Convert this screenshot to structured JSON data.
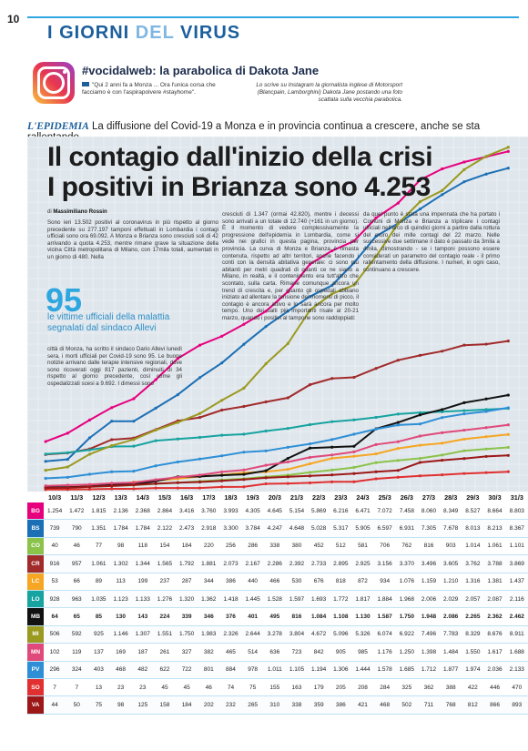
{
  "page_number": "10",
  "section": {
    "word1": "I GIORNI",
    "word2": "DEL",
    "word3": "VIRUS"
  },
  "insta": {
    "headline": "#vocidalweb: la parabolica di Dakota Jane",
    "quote": "\"Qui 2 anni fa a Monza ... Ora l'unica corsa che facciamo è con l'aspirapolvere #stayhome\".",
    "caption": "Lo scrive su Instagram la giornalista inglese di Motorsport (Blancpain, Lamborghini) Dakota Jane postando una foto scattata sulla vecchia parabolica."
  },
  "kicker": {
    "tag": "L'EPIDEMIA",
    "text": "La diffusione del Covid-19 a Monza e in provincia continua a crescere, anche se sta rallentando."
  },
  "headline": {
    "line1": "Il contagio dall'inizio della crisi",
    "line2": "I positivi in Brianza sono 4.253"
  },
  "byline": {
    "prefix": "di",
    "author": "Massimiliano Rossin"
  },
  "article": {
    "col1_top": "Sono ieri 13.502 positivi al coronavirus in più rispetto al giorno precedente su 277.197 tamponi effettuati in Lombardia i contagi ufficiali sono ora 69.092. A Monza e Brianza sono cresciuti soli di 42 arrivando a quota 4.253, mentre rimane grave la situazione della vicina Città metropolitana di Milano, con 17mila totali, aumentati in un giorno di 480. Nella",
    "col1_bottom": "città di Monza, ha scritto il sindaco Dario Allevi lunedì sera, i morti ufficiali per Covid-19 sono 95. Le buone notizie arrivano dalle terapie intensive regionali, dove sono ricoverati oggi 817 pazienti, diminuiti di 34 rispetto al giorno precedente, così come gli ospedalizzati scesi a 9.692. I dimessi sono",
    "col2": "cresciuti di 1.347 (ormai 42.820), mentre i decessi sono arrivati a un totale di 12.740 (+161 in un giorno). È il momento di vedere complessivamente la progressione dell'epidemia in Lombardia, come si vede nei grafici in questa pagina, provincia per provincia. La curva di Monza e Brianza è rimasta contenuta, rispetto ad altri territori, anche facendo i conti con la densità abitativa generale: ci sono più abitanti per metri quadrati di quanti ce ne siano a Milano, in realtà, e il contenimento era tutt'altro che scontato, sulla carta. Rimane comunque ancora un trend di crescita e, per quanto gli ospedali abbiano iniziato ad allentare la tensione dei momenti di picco, il contagio è ancora attivo e lo sarà ancora per molto tempo. Uno dei salti più importanti risale al 20-21 marzo, quando i positivi al tampone sono raddoppiati:",
    "col3": "da quel punto è stata una impennata che ha portato i Comuni di Monza e Brianza a triplicare i contagi ufficiali nell'arco di quindici giorni a partire dalla rottura del muro dei mille contagi del 22 marzo. Nelle successive due settimane il dato è passato da 3mila a 4mila, dimostrando - se i tamponi possono essere considerati un parametro del contagio reale - il primo rallentamento della diffusione. I numeri, in ogni caso, continuano a crescere."
  },
  "stat": {
    "number": "95",
    "text_line1": "le vittime ufficiali della malattia",
    "text_line2": "segnalati dal sindaco Allevi"
  },
  "chart_data": {
    "type": "line",
    "x": [
      "10/3",
      "11/3",
      "12/3",
      "13/3",
      "14/3",
      "15/3",
      "16/3",
      "17/3",
      "18/3",
      "19/3",
      "20/3",
      "21/3",
      "22/3",
      "23/3",
      "24/3",
      "25/3",
      "26/3",
      "27/3",
      "28/3",
      "29/3",
      "30/3",
      "31/3"
    ],
    "series": [
      {
        "name": "BG",
        "color": "#e6007e",
        "values": [
          1254,
          1472,
          1815,
          2136,
          2368,
          2864,
          3416,
          3760,
          3993,
          4305,
          4645,
          5154,
          5869,
          6216,
          6471,
          7072,
          7458,
          8060,
          8349,
          8527,
          8664,
          8803
        ]
      },
      {
        "name": "BS",
        "color": "#1b6fb5",
        "values": [
          739,
          790,
          1351,
          1784,
          1784,
          2122,
          2473,
          2918,
          3300,
          3784,
          4247,
          4648,
          5028,
          5317,
          5905,
          6597,
          6931,
          7305,
          7678,
          8013,
          8213,
          8367
        ]
      },
      {
        "name": "CO",
        "color": "#8bc34a",
        "values": [
          40,
          46,
          77,
          98,
          118,
          154,
          184,
          220,
          256,
          286,
          338,
          380,
          452,
          512,
          581,
          706,
          762,
          816,
          903,
          1014,
          1061,
          1101
        ]
      },
      {
        "name": "CR",
        "color": "#a12b2b",
        "values": [
          916,
          957,
          1061,
          1302,
          1344,
          1565,
          1792,
          1881,
          2073,
          2167,
          2286,
          2392,
          2733,
          2895,
          2925,
          3156,
          3370,
          3496,
          3605,
          3762,
          3788,
          3869
        ]
      },
      {
        "name": "LC",
        "color": "#f6a623",
        "values": [
          53,
          66,
          89,
          113,
          199,
          237,
          287,
          344,
          386,
          440,
          466,
          530,
          676,
          818,
          872,
          934,
          1076,
          1159,
          1210,
          1316,
          1381,
          1437
        ]
      },
      {
        "name": "LO",
        "color": "#17a3a0",
        "values": [
          928,
          963,
          1035,
          1123,
          1133,
          1276,
          1320,
          1362,
          1418,
          1445,
          1528,
          1597,
          1693,
          1772,
          1817,
          1884,
          1968,
          2006,
          2029,
          2057,
          2087,
          2116
        ]
      },
      {
        "name": "MB",
        "color": "#111111",
        "values": [
          64,
          65,
          85,
          130,
          143,
          224,
          339,
          346,
          376,
          401,
          495,
          816,
          1084,
          1108,
          1130,
          1587,
          1750,
          1948,
          2086,
          2265,
          2362,
          2462
        ]
      },
      {
        "name": "MI",
        "color": "#9a9a20",
        "values": [
          506,
          592,
          925,
          1146,
          1307,
          1551,
          1750,
          1983,
          2326,
          2644,
          3278,
          3804,
          4672,
          5096,
          5326,
          6074,
          6922,
          7496,
          7783,
          8329,
          8676,
          8911
        ]
      },
      {
        "name": "MN",
        "color": "#e04a7a",
        "values": [
          102,
          119,
          137,
          169,
          187,
          261,
          327,
          382,
          465,
          514,
          636,
          723,
          842,
          905,
          985,
          1176,
          1250,
          1398,
          1484,
          1550,
          1617,
          1688
        ]
      },
      {
        "name": "PV",
        "color": "#2e8fd6",
        "values": [
          296,
          324,
          403,
          468,
          482,
          622,
          722,
          801,
          884,
          978,
          1011,
          1105,
          1194,
          1306,
          1444,
          1578,
          1685,
          1712,
          1877,
          1974,
          2036,
          2133
        ]
      },
      {
        "name": "SO",
        "color": "#e03030",
        "values": [
          7,
          7,
          13,
          23,
          23,
          45,
          45,
          46,
          74,
          75,
          155,
          163,
          179,
          205,
          208,
          284,
          325,
          362,
          388,
          422,
          446,
          470
        ]
      },
      {
        "name": "VA",
        "color": "#9c1818",
        "values": [
          44,
          50,
          75,
          98,
          125,
          158,
          184,
          202,
          232,
          265,
          310,
          338,
          359,
          386,
          421,
          468,
          502,
          711,
          768,
          812,
          866,
          893
        ]
      }
    ],
    "ylim": [
      0,
      9000
    ],
    "grid": true
  },
  "table": {
    "rows": [
      {
        "code": "BG",
        "cells": [
          "1.254",
          "1.472",
          "1.815",
          "2.136",
          "2.368",
          "2.864",
          "3.416",
          "3.760",
          "3.993",
          "4.305",
          "4.645",
          "5.154",
          "5.869",
          "6.216",
          "6.471",
          "7.072",
          "7.458",
          "8.060",
          "8.349",
          "8.527",
          "8.664",
          "8.803"
        ]
      },
      {
        "code": "BS",
        "cells": [
          "739",
          "790",
          "1.351",
          "1.784",
          "1.784",
          "2.122",
          "2.473",
          "2.918",
          "3.300",
          "3.784",
          "4.247",
          "4.648",
          "5.028",
          "5.317",
          "5.905",
          "6.597",
          "6.931",
          "7.305",
          "7.678",
          "8.013",
          "8.213",
          "8.367"
        ]
      },
      {
        "code": "CO",
        "cells": [
          "40",
          "46",
          "77",
          "98",
          "118",
          "154",
          "184",
          "220",
          "256",
          "286",
          "338",
          "380",
          "452",
          "512",
          "581",
          "706",
          "762",
          "816",
          "903",
          "1.014",
          "1.061",
          "1.101"
        ]
      },
      {
        "code": "CR",
        "cells": [
          "916",
          "957",
          "1.061",
          "1.302",
          "1.344",
          "1.565",
          "1.792",
          "1.881",
          "2.073",
          "2.167",
          "2.286",
          "2.392",
          "2.733",
          "2.895",
          "2.925",
          "3.156",
          "3.370",
          "3.496",
          "3.605",
          "3.762",
          "3.788",
          "3.869"
        ]
      },
      {
        "code": "LC",
        "cells": [
          "53",
          "66",
          "89",
          "113",
          "199",
          "237",
          "287",
          "344",
          "386",
          "440",
          "466",
          "530",
          "676",
          "818",
          "872",
          "934",
          "1.076",
          "1.159",
          "1.210",
          "1.316",
          "1.381",
          "1.437"
        ]
      },
      {
        "code": "LO",
        "cells": [
          "928",
          "963",
          "1.035",
          "1.123",
          "1.133",
          "1.276",
          "1.320",
          "1.362",
          "1.418",
          "1.445",
          "1.528",
          "1.597",
          "1.693",
          "1.772",
          "1.817",
          "1.884",
          "1.968",
          "2.006",
          "2.029",
          "2.057",
          "2.087",
          "2.116"
        ]
      },
      {
        "code": "MB",
        "cells": [
          "64",
          "65",
          "85",
          "130",
          "143",
          "224",
          "339",
          "346",
          "376",
          "401",
          "495",
          "816",
          "1.084",
          "1.108",
          "1.130",
          "1.587",
          "1.750",
          "1.948",
          "2.086",
          "2.265",
          "2.362",
          "2.462"
        ],
        "bold": true
      },
      {
        "code": "MI",
        "cells": [
          "506",
          "592",
          "925",
          "1.146",
          "1.307",
          "1.551",
          "1.750",
          "1.983",
          "2.326",
          "2.644",
          "3.278",
          "3.804",
          "4.672",
          "5.096",
          "5.326",
          "6.074",
          "6.922",
          "7.496",
          "7.783",
          "8.329",
          "8.676",
          "8.911"
        ]
      },
      {
        "code": "MN",
        "cells": [
          "102",
          "119",
          "137",
          "169",
          "187",
          "261",
          "327",
          "382",
          "465",
          "514",
          "636",
          "723",
          "842",
          "905",
          "985",
          "1.176",
          "1.250",
          "1.398",
          "1.484",
          "1.550",
          "1.617",
          "1.688"
        ]
      },
      {
        "code": "PV",
        "cells": [
          "296",
          "324",
          "403",
          "468",
          "482",
          "622",
          "722",
          "801",
          "884",
          "978",
          "1.011",
          "1.105",
          "1.194",
          "1.306",
          "1.444",
          "1.578",
          "1.685",
          "1.712",
          "1.877",
          "1.974",
          "2.036",
          "2.133"
        ]
      },
      {
        "code": "SO",
        "cells": [
          "7",
          "7",
          "13",
          "23",
          "23",
          "45",
          "45",
          "46",
          "74",
          "75",
          "155",
          "163",
          "179",
          "205",
          "208",
          "284",
          "325",
          "362",
          "388",
          "422",
          "446",
          "470"
        ]
      },
      {
        "code": "VA",
        "cells": [
          "44",
          "50",
          "75",
          "98",
          "125",
          "158",
          "184",
          "202",
          "232",
          "265",
          "310",
          "338",
          "359",
          "386",
          "421",
          "468",
          "502",
          "711",
          "768",
          "812",
          "866",
          "893"
        ]
      }
    ]
  }
}
